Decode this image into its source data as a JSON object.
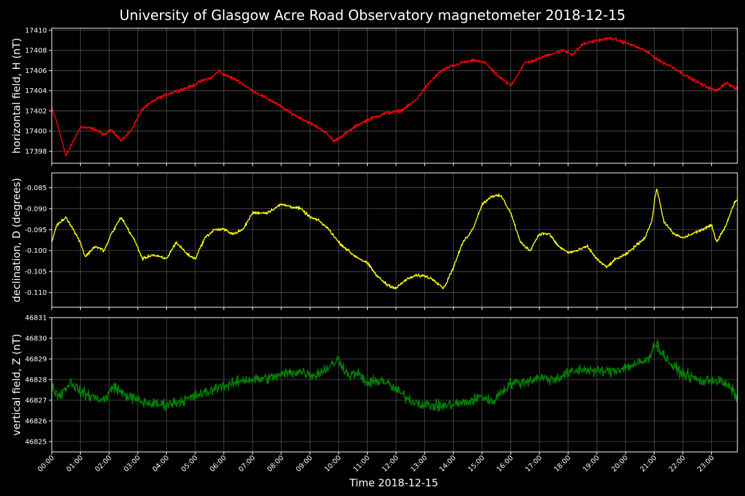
{
  "chart_data": [
    {
      "type": "line",
      "title": "University of Glasgow Acre Road Observatory magnetometer 2018-12-15",
      "xlabel": "Time 2018-12-15",
      "ylabel": "horizontal field, H (nT)",
      "color": "#ff0000",
      "xlim_hours": [
        0,
        23.9
      ],
      "ylim": [
        17396.8,
        17410.2
      ],
      "yticks": [
        "17398",
        "17400",
        "17402",
        "17404",
        "17406",
        "17408",
        "17410"
      ],
      "ytick_values": [
        17398,
        17400,
        17402,
        17404,
        17406,
        17408,
        17410
      ],
      "noise": 0.4,
      "series": [
        {
          "x": [
            "00:00",
            "00:10",
            "00:30",
            "00:45",
            "01:00",
            "01:30",
            "01:50",
            "02:05",
            "02:25",
            "02:45",
            "03:10",
            "03:40",
            "04:10",
            "04:50",
            "05:15",
            "05:35",
            "05:50",
            "06:00",
            "06:30",
            "07:00",
            "07:40",
            "08:20",
            "09:00",
            "09:30",
            "09:50",
            "10:10",
            "10:40",
            "11:05",
            "11:40",
            "12:10",
            "12:40",
            "13:10",
            "13:35",
            "13:55",
            "14:20",
            "14:45",
            "15:10",
            "15:25",
            "15:40",
            "16:00",
            "16:30",
            "16:50",
            "17:20",
            "17:50",
            "18:10",
            "18:30",
            "19:00",
            "19:30",
            "20:10",
            "20:40",
            "21:10",
            "21:40",
            "22:10",
            "22:40",
            "23:10",
            "23:30",
            "23:50"
          ],
          "y": [
            17402.3,
            17401.0,
            17397.5,
            17399.0,
            17400.4,
            17400.2,
            17399.6,
            17400.2,
            17399.0,
            17400.0,
            17402.2,
            17403.2,
            17403.8,
            17404.4,
            17405.0,
            17405.3,
            17406.0,
            17405.6,
            17405.0,
            17404.0,
            17403.0,
            17401.8,
            17400.8,
            17400.0,
            17399.0,
            17399.6,
            17400.6,
            17401.2,
            17401.8,
            17402.0,
            17403.0,
            17404.8,
            17406.0,
            17406.4,
            17406.8,
            17407.0,
            17406.7,
            17405.8,
            17405.2,
            17404.5,
            17406.8,
            17407.0,
            17407.6,
            17408.0,
            17407.6,
            17408.6,
            17409.0,
            17409.2,
            17408.6,
            17408.0,
            17407.0,
            17406.3,
            17405.4,
            17404.6,
            17404.0,
            17404.8,
            17404.2
          ]
        }
      ]
    },
    {
      "type": "line",
      "ylabel": "declination, D (degrees)",
      "color": "#ffff00",
      "xlim_hours": [
        0,
        23.9
      ],
      "ylim": [
        -0.1135,
        -0.0815
      ],
      "yticks": [
        "-0.110",
        "-0.105",
        "-0.100",
        "-0.095",
        "-0.090",
        "-0.085"
      ],
      "ytick_values": [
        -0.11,
        -0.105,
        -0.1,
        -0.095,
        -0.09,
        -0.085
      ],
      "noise": 0.0009,
      "series": [
        {
          "x": [
            "00:00",
            "00:10",
            "00:20",
            "00:30",
            "00:40",
            "01:00",
            "01:10",
            "01:30",
            "01:50",
            "02:05",
            "02:15",
            "02:25",
            "02:40",
            "02:55",
            "03:10",
            "03:30",
            "04:00",
            "04:20",
            "04:45",
            "05:00",
            "05:20",
            "05:40",
            "06:00",
            "06:20",
            "06:40",
            "07:00",
            "07:30",
            "08:00",
            "08:40",
            "09:00",
            "09:20",
            "09:40",
            "10:00",
            "10:30",
            "11:00",
            "11:20",
            "11:40",
            "12:00",
            "12:20",
            "12:40",
            "13:00",
            "13:20",
            "13:40",
            "14:00",
            "14:20",
            "14:40",
            "15:00",
            "15:20",
            "15:40",
            "16:00",
            "16:20",
            "16:40",
            "17:00",
            "17:20",
            "17:40",
            "18:00",
            "18:20",
            "18:40",
            "19:00",
            "19:20",
            "19:40",
            "20:00",
            "20:20",
            "20:40",
            "20:55",
            "21:05",
            "21:20",
            "21:40",
            "22:00",
            "22:20",
            "22:40",
            "23:00",
            "23:10",
            "23:30",
            "23:50"
          ],
          "y": [
            -0.098,
            -0.094,
            -0.093,
            -0.092,
            -0.094,
            -0.098,
            -0.1015,
            -0.099,
            -0.1,
            -0.096,
            -0.094,
            -0.092,
            -0.095,
            -0.098,
            -0.102,
            -0.101,
            -0.102,
            -0.098,
            -0.101,
            -0.102,
            -0.097,
            -0.095,
            -0.095,
            -0.096,
            -0.095,
            -0.091,
            -0.091,
            -0.089,
            -0.09,
            -0.092,
            -0.093,
            -0.095,
            -0.098,
            -0.101,
            -0.103,
            -0.106,
            -0.108,
            -0.109,
            -0.107,
            -0.106,
            -0.106,
            -0.107,
            -0.109,
            -0.104,
            -0.098,
            -0.095,
            -0.089,
            -0.087,
            -0.087,
            -0.091,
            -0.098,
            -0.1,
            -0.096,
            -0.096,
            -0.099,
            -0.1005,
            -0.1,
            -0.099,
            -0.102,
            -0.104,
            -0.102,
            -0.101,
            -0.099,
            -0.097,
            -0.093,
            -0.085,
            -0.093,
            -0.096,
            -0.097,
            -0.096,
            -0.095,
            -0.094,
            -0.098,
            -0.094,
            -0.088
          ]
        }
      ]
    },
    {
      "type": "line",
      "ylabel": "vertical field, Z (nT)",
      "color": "#008000",
      "xlim_hours": [
        0,
        23.9
      ],
      "ylim": [
        46824.5,
        46831
      ],
      "yticks": [
        "46825",
        "46826",
        "46827",
        "46828",
        "46829",
        "46830",
        "46831"
      ],
      "ytick_values": [
        46825,
        46826,
        46827,
        46828,
        46829,
        46830,
        46831
      ],
      "noise": 0.65,
      "series": [
        {
          "x": [
            "00:00",
            "00:15",
            "00:40",
            "01:00",
            "01:20",
            "01:50",
            "02:10",
            "02:30",
            "02:50",
            "03:10",
            "03:40",
            "04:00",
            "04:20",
            "04:50",
            "05:10",
            "05:30",
            "05:50",
            "06:10",
            "06:40",
            "07:10",
            "07:40",
            "08:10",
            "08:40",
            "09:10",
            "09:40",
            "10:00",
            "10:20",
            "10:40",
            "11:00",
            "11:30",
            "12:00",
            "12:30",
            "13:00",
            "13:30",
            "14:00",
            "14:30",
            "15:00",
            "15:20",
            "15:40",
            "16:00",
            "16:30",
            "17:00",
            "17:30",
            "18:00",
            "18:30",
            "19:00",
            "19:30",
            "20:00",
            "20:30",
            "20:50",
            "21:00",
            "21:20",
            "21:40",
            "22:00",
            "22:20",
            "22:40",
            "23:00",
            "23:20",
            "23:40",
            "23:50"
          ],
          "y": [
            46827.7,
            46827.2,
            46827.9,
            46827.4,
            46827.2,
            46827.0,
            46827.7,
            46827.3,
            46827.1,
            46826.9,
            46826.8,
            46826.8,
            46826.9,
            46827.1,
            46827.3,
            46827.4,
            46827.7,
            46827.7,
            46828.0,
            46828.0,
            46828.1,
            46828.3,
            46828.4,
            46828.2,
            46828.6,
            46829.0,
            46828.2,
            46828.3,
            46827.8,
            46828.0,
            46827.5,
            46827.0,
            46826.8,
            46826.7,
            46826.8,
            46826.9,
            46827.2,
            46826.9,
            46827.4,
            46827.8,
            46827.9,
            46828.1,
            46828.0,
            46828.3,
            46828.5,
            46828.4,
            46828.4,
            46828.6,
            46828.8,
            46829.0,
            46829.8,
            46829.2,
            46828.6,
            46828.3,
            46828.1,
            46827.9,
            46828.0,
            46827.9,
            46827.6,
            46827.2
          ]
        }
      ]
    }
  ],
  "xticks": [
    "00:00",
    "01:00",
    "02:00",
    "03:00",
    "04:00",
    "05:00",
    "06:00",
    "07:00",
    "08:00",
    "09:00",
    "10:00",
    "11:00",
    "12:00",
    "13:00",
    "14:00",
    "15:00",
    "16:00",
    "17:00",
    "18:00",
    "19:00",
    "20:00",
    "21:00",
    "22:00",
    "23:00"
  ]
}
